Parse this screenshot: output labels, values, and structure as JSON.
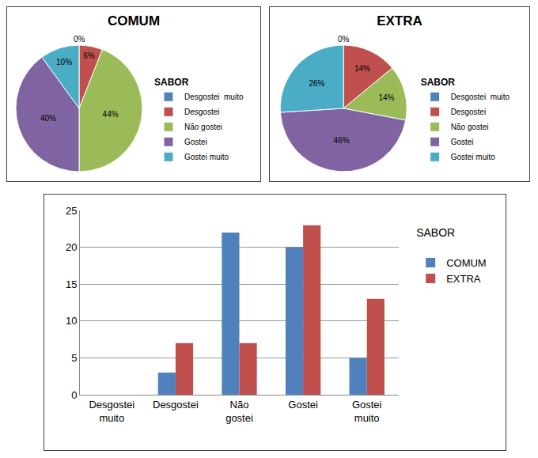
{
  "chart_data": [
    {
      "type": "pie",
      "title": "COMUM",
      "legend_title": "SABOR",
      "categories": [
        "Desgostei  muito",
        "Desgostei",
        "Não gostei",
        "Gostei",
        "Gostei muito"
      ],
      "values": [
        0,
        6,
        44,
        40,
        10
      ],
      "value_labels": [
        "0%",
        "6%",
        "44%",
        "40%",
        "10%"
      ],
      "colors": [
        "#4f81bd",
        "#c0504d",
        "#9bbb59",
        "#8064a2",
        "#4bacc6"
      ],
      "data_labels": true,
      "legend": "right"
    },
    {
      "type": "pie",
      "title": "EXTRA",
      "legend_title": "SABOR",
      "categories": [
        "Desgostei  muito",
        "Desgostei",
        "Não gostei",
        "Gostei",
        "Gostei muito"
      ],
      "values": [
        0,
        14,
        14,
        46,
        26
      ],
      "value_labels": [
        "0%",
        "14%",
        "14%",
        "46%",
        "26%"
      ],
      "colors": [
        "#4f81bd",
        "#c0504d",
        "#9bbb59",
        "#8064a2",
        "#4bacc6"
      ],
      "data_labels": true,
      "legend": "right"
    },
    {
      "type": "bar",
      "legend_title": "SABOR",
      "categories": [
        "Desgostei muito",
        "Desgostei",
        "Não gostei",
        "Gostei",
        "Gostei muito"
      ],
      "series": [
        {
          "name": "COMUM",
          "color": "#4f81bd",
          "values": [
            0,
            3,
            22,
            20,
            5
          ]
        },
        {
          "name": "EXTRA",
          "color": "#c0504d",
          "values": [
            0,
            7,
            7,
            23,
            13
          ]
        }
      ],
      "ylim": [
        0,
        25
      ],
      "yticks": [
        0,
        5,
        10,
        15,
        20,
        25
      ],
      "grid": true,
      "legend": "right"
    }
  ]
}
